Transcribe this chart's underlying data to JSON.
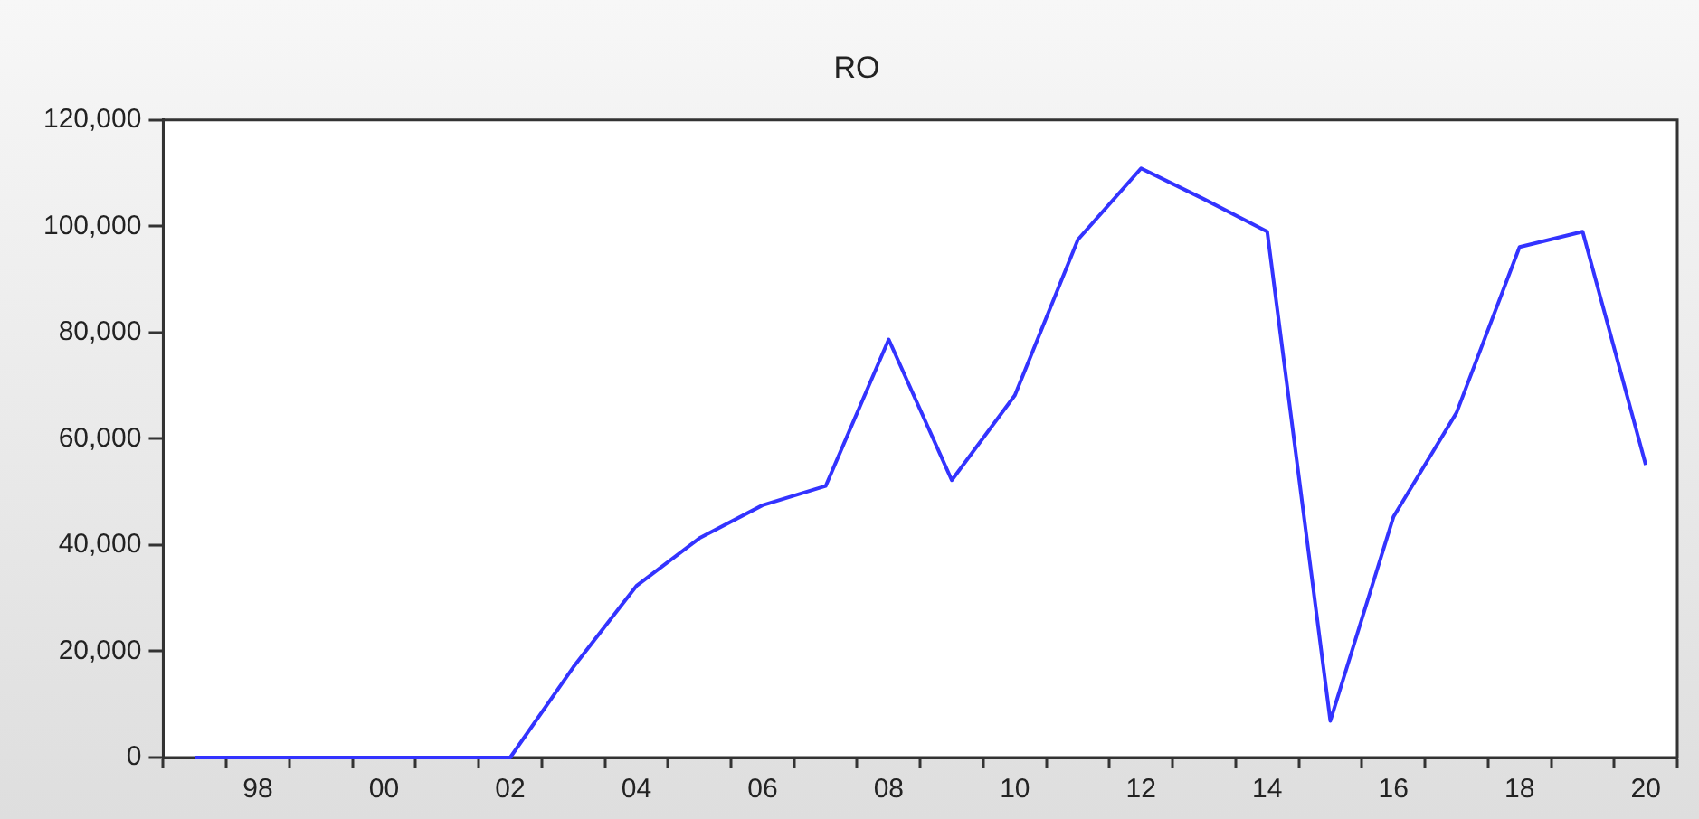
{
  "chart_data": {
    "type": "line",
    "title": "RO",
    "categories": [
      null,
      "98",
      null,
      "00",
      null,
      "02",
      null,
      "04",
      null,
      "06",
      null,
      "08",
      null,
      "10",
      null,
      "12",
      null,
      "14",
      null,
      "16",
      null,
      "18",
      null,
      "20"
    ],
    "series": [
      {
        "color": "#3333ff",
        "values": [
          0,
          0,
          0,
          0,
          0,
          0,
          17000,
          32300,
          41300,
          47500,
          51100,
          78700,
          52200,
          68200,
          97500,
          110900,
          105100,
          99000,
          6900,
          45300,
          64900,
          96100,
          99000,
          55100
        ]
      }
    ],
    "ylim": [
      0,
      120000
    ],
    "yticks": [
      {
        "value": 0,
        "label": "0"
      },
      {
        "value": 20000,
        "label": "20,000"
      },
      {
        "value": 40000,
        "label": "40,000"
      },
      {
        "value": 60000,
        "label": "60,000"
      },
      {
        "value": 80000,
        "label": "80,000"
      },
      {
        "value": 100000,
        "label": "100,000"
      },
      {
        "value": 120000,
        "label": "120,000"
      }
    ],
    "grid": false,
    "legend": false,
    "marker": "none",
    "line_style": "solid"
  }
}
